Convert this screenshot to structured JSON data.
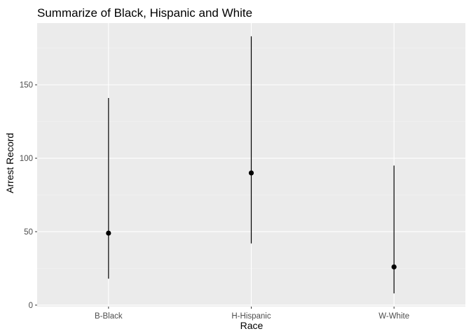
{
  "chart_data": {
    "type": "pointrange",
    "title": "Summarize of Black, Hispanic and White",
    "xlabel": "Race",
    "ylabel": "Arrest Record",
    "categories": [
      "B-Black",
      "H-Hispanic",
      "W-White"
    ],
    "points": [
      {
        "category": "B-Black",
        "y": 49,
        "ymin": 18,
        "ymax": 141
      },
      {
        "category": "H-Hispanic",
        "y": 90,
        "ymin": 42,
        "ymax": 183
      },
      {
        "category": "W-White",
        "y": 26,
        "ymin": 8,
        "ymax": 95
      }
    ],
    "yticks": [
      0,
      50,
      100,
      150
    ],
    "ylim": [
      -1,
      192
    ],
    "grid": true,
    "colors": {
      "panel": "#EBEBEB",
      "grid_major": "#FFFFFF",
      "grid_minor": "#F4F4F4",
      "marks": "#000000"
    }
  }
}
